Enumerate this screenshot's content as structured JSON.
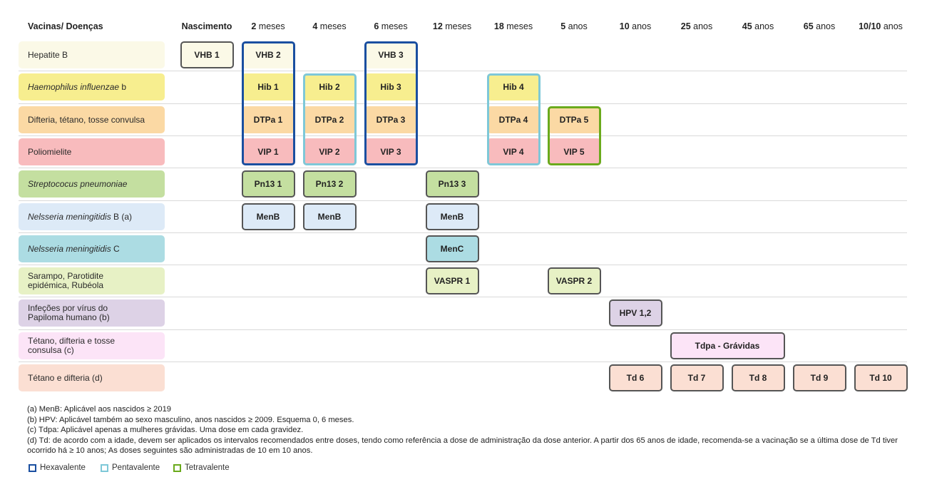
{
  "header": {
    "diseases_label": "Vacinas/ Doenças",
    "cols": [
      {
        "bold": "Nascimento",
        "rest": ""
      },
      {
        "bold": "2",
        "rest": " meses"
      },
      {
        "bold": "4",
        "rest": " meses"
      },
      {
        "bold": "6",
        "rest": " meses"
      },
      {
        "bold": "12",
        "rest": " meses"
      },
      {
        "bold": "18",
        "rest": " meses"
      },
      {
        "bold": "5",
        "rest": " anos"
      },
      {
        "bold": "10",
        "rest": " anos"
      },
      {
        "bold": "25",
        "rest": " anos"
      },
      {
        "bold": "45",
        "rest": " anos"
      },
      {
        "bold": "65",
        "rest": " anos"
      },
      {
        "bold": "10/10",
        "rest": " anos"
      }
    ]
  },
  "rows": [
    {
      "id": "hepb",
      "label": "Hepatite B",
      "italic": false,
      "bg": "#fbf9e7",
      "doses": [
        {
          "col": 0,
          "label": "VHB 1"
        },
        {
          "col": 1,
          "label": "VHB 2",
          "plain": true
        },
        {
          "col": 3,
          "label": "VHB 3",
          "plain": true
        }
      ]
    },
    {
      "id": "hib",
      "label_i": "Haemophilus influenzae",
      "label_rest": " b",
      "bg": "#f7ee8f",
      "doses": [
        {
          "col": 1,
          "label": "Hib 1",
          "plain": true
        },
        {
          "col": 2,
          "label": "Hib 2",
          "plain": true
        },
        {
          "col": 3,
          "label": "Hib 3",
          "plain": true
        },
        {
          "col": 5,
          "label": "Hib 4",
          "plain": true
        }
      ]
    },
    {
      "id": "dtpa",
      "label": "Difteria, tétano, tosse convulsa",
      "italic": false,
      "bg": "#fbd9a4",
      "doses": [
        {
          "col": 1,
          "label": "DTPa 1",
          "plain": true
        },
        {
          "col": 2,
          "label": "DTPa 2",
          "plain": true
        },
        {
          "col": 3,
          "label": "DTPa 3",
          "plain": true
        },
        {
          "col": 5,
          "label": "DTPa 4",
          "plain": true
        },
        {
          "col": 6,
          "label": "DTPa 5",
          "plain": true
        }
      ]
    },
    {
      "id": "vip",
      "label": "Poliomielite",
      "italic": false,
      "bg": "#f8bbbd",
      "doses": [
        {
          "col": 1,
          "label": "VIP 1",
          "plain": true
        },
        {
          "col": 2,
          "label": "VIP 2",
          "plain": true
        },
        {
          "col": 3,
          "label": "VIP 3",
          "plain": true
        },
        {
          "col": 5,
          "label": "VIP 4",
          "plain": true
        },
        {
          "col": 6,
          "label": "VIP 5",
          "plain": true
        }
      ]
    },
    {
      "id": "pn",
      "label_i": "Streptococus pneumoniae",
      "label_rest": "",
      "bg": "#c4dfa0",
      "doses": [
        {
          "col": 1,
          "label": "Pn13 1"
        },
        {
          "col": 2,
          "label": "Pn13 2"
        },
        {
          "col": 4,
          "label": "Pn13 3"
        }
      ]
    },
    {
      "id": "menb",
      "label_i": "Nelsseria meningitidis",
      "label_rest": " B (a)",
      "bg": "#ddeaf7",
      "doses": [
        {
          "col": 1,
          "label": "MenB"
        },
        {
          "col": 2,
          "label": "MenB"
        },
        {
          "col": 4,
          "label": "MenB"
        }
      ]
    },
    {
      "id": "menc",
      "label_i": "Nelsseria meningitidis",
      "label_rest": " C",
      "bg": "#acdce3",
      "doses": [
        {
          "col": 4,
          "label": "MenC"
        }
      ]
    },
    {
      "id": "vaspr",
      "label": "Sarampo, Parotidite epidémica, Rubéola",
      "italic": false,
      "bg": "#e7f1c5",
      "doses": [
        {
          "col": 4,
          "label": "VASPR 1"
        },
        {
          "col": 6,
          "label": "VASPR 2"
        }
      ]
    },
    {
      "id": "hpv",
      "label": "Infeções por vírus do Papiloma humano (b)",
      "italic": false,
      "bg": "#ddd2e6",
      "doses": [
        {
          "col": 7,
          "label": "HPV 1,2"
        }
      ]
    },
    {
      "id": "tdpa",
      "label": "Tétano, difteria e tosse consulsa (c)",
      "italic": false,
      "bg": "#fce4f7",
      "doses": [
        {
          "col": 8,
          "label": "Tdpa - Grávidas",
          "span": 2
        }
      ]
    },
    {
      "id": "td",
      "label": "Tétano e difteria (d)",
      "italic": false,
      "bg": "#fbdfd3",
      "doses": [
        {
          "col": 7,
          "label": "Td 6"
        },
        {
          "col": 8,
          "label": "Td 7"
        },
        {
          "col": 9,
          "label": "Td 8"
        },
        {
          "col": 10,
          "label": "Td 9"
        },
        {
          "col": 11,
          "label": "Td 10"
        }
      ]
    }
  ],
  "groups": [
    {
      "type": "hexa",
      "col": 1,
      "from": 0,
      "to": 3
    },
    {
      "type": "hexa",
      "col": 3,
      "from": 0,
      "to": 3
    },
    {
      "type": "penta",
      "col": 2,
      "from": 1,
      "to": 3
    },
    {
      "type": "penta",
      "col": 5,
      "from": 1,
      "to": 3
    },
    {
      "type": "tetra",
      "col": 6,
      "from": 2,
      "to": 3
    }
  ],
  "notes": [
    "(a) MenB: Aplicável aos nascidos ≥ 2019",
    "(b) HPV: Aplicável também ao sexo masculino, anos nascidos ≥ 2009. Esquema 0, 6 meses.",
    "(c) Tdpa: Aplicável apenas a mulheres grávidas. Uma dose em cada gravidez.",
    "(d) Td: de acordo com a idade, devem ser aplicados os intervalos recomendados entre doses, tendo como referência a dose de administração da dose anterior. A partir dos 65 anos de idade, recomenda-se a vacinação se a última dose de Td tiver ocorrido há ≥ 10 anos; As doses seguintes são administradas de 10 em 10 anos."
  ],
  "legend": [
    {
      "label": "Hexavalente",
      "color": "#1a4fa0"
    },
    {
      "label": "Pentavalente",
      "color": "#7ec8d8"
    },
    {
      "label": "Tetravalente",
      "color": "#6aaa1c"
    }
  ]
}
